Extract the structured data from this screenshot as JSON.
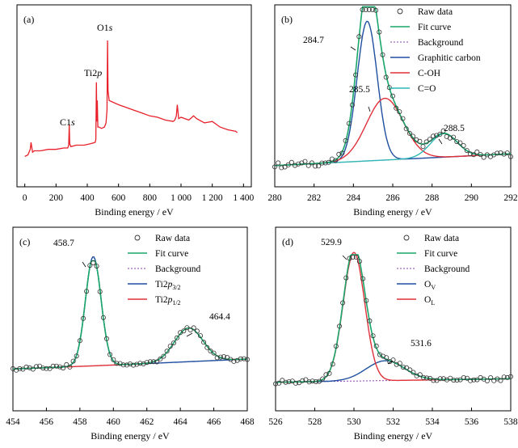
{
  "chart_data": [
    {
      "id": "a",
      "type": "line",
      "panel_label": "(a)",
      "xlabel": "Binding energy / eV",
      "ylabel": "",
      "xlim": [
        -50,
        1450
      ],
      "ylim": [
        0,
        110
      ],
      "xticks": [
        0,
        200,
        400,
        600,
        800,
        1000,
        1200,
        1400
      ],
      "xtick_labels": [
        "0",
        "200",
        "400",
        "600",
        "800",
        "1 000",
        "1 200",
        "1 400"
      ],
      "colors": {
        "survey": "#e8202a"
      },
      "peak_labels": [
        {
          "text": "C1",
          "italic": "s",
          "x": 284.8,
          "y": 30
        },
        {
          "text": "Ti2",
          "italic": "p",
          "x": 458.7,
          "y": 57
        },
        {
          "text": "O1",
          "italic": "s",
          "x": 529.9,
          "y": 85
        }
      ],
      "series": [
        {
          "name": "",
          "x": [
            0,
            20,
            35,
            40,
            50,
            60,
            100,
            150,
            200,
            250,
            275,
            281,
            284.8,
            288,
            295,
            330,
            380,
            420,
            450,
            455,
            458.7,
            461,
            464,
            468,
            475,
            490,
            510,
            520,
            526,
            529.9,
            533,
            540,
            560,
            600,
            650,
            700,
            750,
            800,
            850,
            900,
            950,
            960,
            970,
            976,
            985,
            1000,
            1050,
            1080,
            1100,
            1150,
            1200,
            1250,
            1300,
            1350,
            1360
          ],
          "y": [
            5,
            6,
            10,
            15,
            8,
            9,
            9,
            10,
            10,
            11,
            11,
            13,
            28,
            14,
            12,
            13,
            13,
            14,
            15,
            17,
            58,
            30,
            45,
            26,
            26,
            25,
            26,
            29,
            38,
            88,
            52,
            45,
            44,
            42,
            40,
            38,
            36,
            34,
            33,
            31,
            30,
            31,
            34,
            42,
            32,
            33,
            31,
            34,
            32,
            29,
            30,
            26,
            24,
            23,
            22
          ]
        }
      ]
    },
    {
      "id": "b",
      "type": "scatter",
      "panel_label": "(b)",
      "xlabel": "Binding energy / eV",
      "ylabel": "",
      "xlim": [
        280,
        292
      ],
      "ylim": [
        0,
        110
      ],
      "xticks": [
        280,
        282,
        284,
        286,
        288,
        290,
        292
      ],
      "xtick_labels": [
        "280",
        "282",
        "284",
        "286",
        "288",
        "290",
        "292"
      ],
      "legend": [
        "Raw data",
        "Fit curve",
        "Background",
        "Graphitic carbon",
        "C-OH",
        "C=O"
      ],
      "legend_position": "top-right",
      "annotations": [
        {
          "text": "284.7",
          "x": 284.7
        },
        {
          "text": "285.5",
          "x": 285.6
        },
        {
          "text": "288.5",
          "x": 288.6
        }
      ],
      "colors": {
        "raw": "#333333",
        "fit": "#1aa56a",
        "background": "#8a3fa8",
        "c1": "#1f4fa0",
        "c2": "#e0303a",
        "c3": "#2fb6b6"
      },
      "background": {
        "x": [
          280,
          292
        ],
        "y": [
          4,
          12
        ]
      },
      "components": [
        {
          "name": "Graphitic carbon",
          "center": 284.7,
          "height": 95,
          "width": 1.2
        },
        {
          "name": "C-OH",
          "center": 285.6,
          "height": 42,
          "width": 2.2
        },
        {
          "name": "C=O",
          "center": 288.6,
          "height": 16,
          "width": 1.6
        }
      ],
      "raw_points": 70
    },
    {
      "id": "c",
      "type": "scatter",
      "panel_label": "(c)",
      "xlabel": "Binding energy / eV",
      "ylabel": "",
      "xlim": [
        454,
        468
      ],
      "ylim": [
        0,
        110
      ],
      "xticks": [
        454,
        456,
        458,
        460,
        462,
        464,
        466,
        468
      ],
      "xtick_labels": [
        "454",
        "456",
        "458",
        "460",
        "462",
        "464",
        "466",
        "468"
      ],
      "legend": [
        {
          "main": "Raw data"
        },
        {
          "main": "Fit curve"
        },
        {
          "main": "Background"
        },
        {
          "main": "Ti2",
          "italic": "p",
          "sub": "3/2"
        },
        {
          "main": "Ti2",
          "italic": "p",
          "sub": "1/2"
        }
      ],
      "legend_position": "top-right",
      "annotations": [
        {
          "text": "458.7",
          "x": 458.8
        },
        {
          "text": "464.4",
          "x": 464.5
        }
      ],
      "colors": {
        "raw": "#333333",
        "fit": "#1aa56a",
        "background": "#8a3fa8",
        "c1": "#1f4fa0",
        "c2": "#e0303a"
      },
      "background": {
        "x": [
          454,
          460,
          468
        ],
        "y": [
          3,
          7,
          13
        ]
      },
      "components": [
        {
          "name": "Ti2p3/2",
          "center": 458.8,
          "height": 110,
          "width": 1.1
        },
        {
          "name": "Ti2p1/2",
          "center": 464.5,
          "height": 34,
          "width": 2.0
        }
      ],
      "raw_points": 70
    },
    {
      "id": "d",
      "type": "scatter",
      "panel_label": "(d)",
      "xlabel": "Binding energy / eV",
      "ylabel": "",
      "xlim": [
        526,
        538
      ],
      "ylim": [
        0,
        110
      ],
      "xticks": [
        526,
        528,
        530,
        532,
        534,
        536,
        538
      ],
      "xtick_labels": [
        "526",
        "528",
        "530",
        "532",
        "534",
        "536",
        "538"
      ],
      "legend": [
        {
          "main": "Raw data"
        },
        {
          "main": "Fit curve"
        },
        {
          "main": "Background"
        },
        {
          "main": "O",
          "sub": "V"
        },
        {
          "main": "O",
          "sub": "L"
        }
      ],
      "legend_position": "top-right",
      "annotations": [
        {
          "text": "529.9",
          "x": 530.0
        },
        {
          "text": "531.6",
          "x": 531.6
        }
      ],
      "colors": {
        "raw": "#333333",
        "fit": "#1aa56a",
        "background": "#8a3fa8",
        "c1": "#1f4fa0",
        "c2": "#e0303a"
      },
      "background": {
        "x": [
          526,
          538
        ],
        "y": [
          3,
          6
        ]
      },
      "components": [
        {
          "name": "OV",
          "center": 531.6,
          "height": 17,
          "width": 2.3
        },
        {
          "name": "OL",
          "center": 530.0,
          "height": 110,
          "width": 1.3
        }
      ],
      "raw_points": 70
    }
  ]
}
